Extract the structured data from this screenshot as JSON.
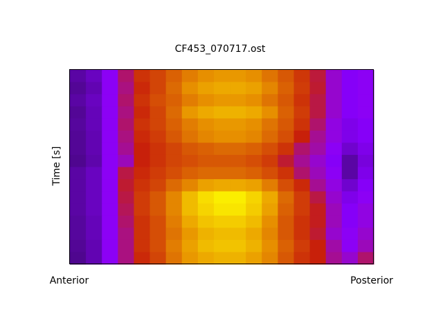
{
  "chart_data": {
    "type": "heatmap",
    "title": "CF453_070717.ost",
    "ylabel": "Time [s]",
    "xlabel_left": "Anterior",
    "xlabel_right": "Posterior",
    "colormap": [
      "#2e0a50",
      "#8a00ff",
      "#c8200a",
      "#e89400",
      "#ffff00"
    ],
    "zlim": [
      0,
      100
    ],
    "values": [
      [
        12,
        16,
        26,
        40,
        54,
        58,
        64,
        70,
        74,
        76,
        76,
        74,
        68,
        62,
        55,
        45,
        30,
        24,
        26
      ],
      [
        10,
        14,
        26,
        38,
        52,
        58,
        66,
        74,
        78,
        80,
        80,
        78,
        72,
        64,
        56,
        46,
        30,
        24,
        26
      ],
      [
        12,
        16,
        26,
        40,
        54,
        60,
        64,
        70,
        74,
        76,
        76,
        74,
        68,
        62,
        54,
        44,
        30,
        24,
        26
      ],
      [
        10,
        15,
        26,
        38,
        52,
        58,
        66,
        76,
        80,
        82,
        82,
        80,
        74,
        64,
        56,
        44,
        30,
        24,
        26
      ],
      [
        11,
        15,
        26,
        40,
        54,
        58,
        64,
        70,
        74,
        76,
        76,
        74,
        68,
        62,
        54,
        40,
        28,
        22,
        24
      ],
      [
        10,
        14,
        26,
        38,
        52,
        56,
        62,
        68,
        72,
        74,
        74,
        72,
        66,
        60,
        50,
        36,
        28,
        22,
        24
      ],
      [
        10,
        14,
        26,
        36,
        50,
        54,
        58,
        62,
        64,
        66,
        66,
        64,
        60,
        54,
        40,
        34,
        26,
        18,
        22
      ],
      [
        9,
        13,
        26,
        32,
        50,
        54,
        58,
        60,
        62,
        62,
        62,
        60,
        56,
        46,
        36,
        30,
        24,
        12,
        20
      ],
      [
        12,
        16,
        26,
        44,
        52,
        56,
        60,
        64,
        66,
        66,
        66,
        64,
        60,
        54,
        40,
        32,
        26,
        12,
        22
      ],
      [
        12,
        16,
        26,
        46,
        54,
        58,
        66,
        72,
        78,
        80,
        80,
        78,
        70,
        60,
        52,
        36,
        28,
        18,
        24
      ],
      [
        12,
        16,
        26,
        44,
        56,
        62,
        72,
        84,
        92,
        96,
        96,
        90,
        80,
        66,
        56,
        44,
        30,
        22,
        26
      ],
      [
        12,
        16,
        26,
        42,
        56,
        62,
        72,
        84,
        90,
        94,
        94,
        88,
        78,
        64,
        56,
        48,
        32,
        24,
        28
      ],
      [
        11,
        15,
        26,
        40,
        54,
        60,
        70,
        80,
        86,
        88,
        88,
        84,
        74,
        62,
        54,
        48,
        32,
        24,
        28
      ],
      [
        11,
        15,
        26,
        38,
        54,
        60,
        68,
        76,
        82,
        84,
        84,
        80,
        72,
        62,
        54,
        46,
        30,
        26,
        30
      ],
      [
        10,
        14,
        26,
        38,
        54,
        60,
        70,
        78,
        84,
        86,
        86,
        82,
        74,
        64,
        56,
        50,
        34,
        26,
        32
      ],
      [
        9,
        14,
        26,
        38,
        52,
        58,
        68,
        76,
        80,
        82,
        82,
        78,
        72,
        62,
        54,
        50,
        36,
        30,
        40
      ]
    ]
  }
}
